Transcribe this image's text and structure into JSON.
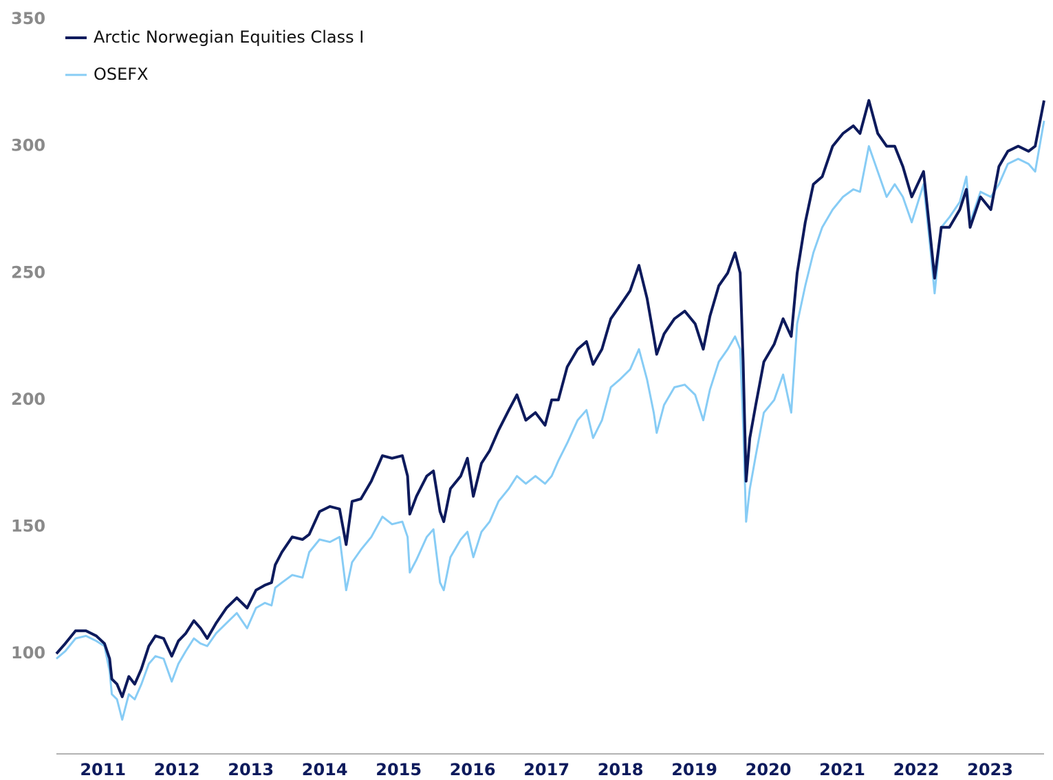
{
  "chart_data": {
    "type": "line",
    "x": [
      2010.87,
      2010.99,
      2011.13,
      2011.27,
      2011.41,
      2011.52,
      2011.59,
      2011.62,
      2011.69,
      2011.76,
      2011.85,
      2011.93,
      2012.02,
      2012.12,
      2012.21,
      2012.32,
      2012.43,
      2012.52,
      2012.62,
      2012.73,
      2012.82,
      2012.91,
      2013.03,
      2013.17,
      2013.31,
      2013.45,
      2013.57,
      2013.69,
      2013.78,
      2013.83,
      2013.92,
      2014.06,
      2014.2,
      2014.29,
      2014.43,
      2014.57,
      2014.7,
      2014.79,
      2014.87,
      2014.99,
      2015.13,
      2015.28,
      2015.41,
      2015.55,
      2015.62,
      2015.65,
      2015.74,
      2015.88,
      2015.97,
      2016.06,
      2016.11,
      2016.2,
      2016.34,
      2016.43,
      2016.51,
      2016.62,
      2016.73,
      2016.85,
      2016.99,
      2017.1,
      2017.22,
      2017.35,
      2017.48,
      2017.57,
      2017.66,
      2017.78,
      2017.92,
      2018.04,
      2018.13,
      2018.25,
      2018.37,
      2018.49,
      2018.63,
      2018.75,
      2018.86,
      2018.95,
      2018.99,
      2019.09,
      2019.23,
      2019.37,
      2019.51,
      2019.62,
      2019.71,
      2019.83,
      2019.95,
      2020.05,
      2020.12,
      2020.16,
      2020.2,
      2020.25,
      2020.33,
      2020.44,
      2020.58,
      2020.7,
      2020.81,
      2020.89,
      2021.0,
      2021.11,
      2021.23,
      2021.37,
      2021.51,
      2021.65,
      2021.74,
      2021.86,
      2021.98,
      2022.1,
      2022.21,
      2022.32,
      2022.44,
      2022.6,
      2022.69,
      2022.75,
      2022.84,
      2022.95,
      2023.09,
      2023.18,
      2023.23,
      2023.37,
      2023.51,
      2023.62,
      2023.74,
      2023.88,
      2024.02,
      2024.11,
      2024.23
    ],
    "series": [
      {
        "name": "Arctic Norwegian Equities Class I",
        "color": "#0d1a5c",
        "width": 4,
        "values": [
          100,
          104,
          109,
          109,
          107,
          104,
          98,
          90,
          88,
          83,
          91,
          88,
          94,
          103,
          107,
          106,
          99,
          105,
          108,
          113,
          110,
          106,
          112,
          118,
          122,
          118,
          125,
          127,
          128,
          135,
          140,
          146,
          145,
          147,
          156,
          158,
          157,
          143,
          160,
          161,
          168,
          178,
          177,
          178,
          170,
          155,
          162,
          170,
          172,
          156,
          152,
          165,
          170,
          177,
          162,
          175,
          180,
          188,
          196,
          202,
          192,
          195,
          190,
          200,
          200,
          213,
          220,
          223,
          214,
          220,
          232,
          237,
          243,
          253,
          240,
          225,
          218,
          226,
          232,
          235,
          230,
          220,
          233,
          245,
          250,
          258,
          250,
          215,
          168,
          185,
          198,
          215,
          222,
          232,
          225,
          250,
          270,
          285,
          288,
          300,
          305,
          308,
          305,
          318,
          305,
          300,
          300,
          292,
          280,
          290,
          265,
          248,
          268,
          268,
          275,
          283,
          268,
          280,
          275,
          292,
          298,
          300,
          298,
          300,
          318
        ]
      },
      {
        "name": "OSEFX",
        "color": "#87ccf5",
        "width": 3,
        "values": [
          98,
          101,
          106,
          107,
          105,
          103,
          93,
          84,
          82,
          74,
          84,
          82,
          88,
          96,
          99,
          98,
          89,
          96,
          101,
          106,
          104,
          103,
          108,
          112,
          116,
          110,
          118,
          120,
          119,
          126,
          128,
          131,
          130,
          140,
          145,
          144,
          146,
          125,
          136,
          141,
          146,
          154,
          151,
          152,
          146,
          132,
          137,
          146,
          149,
          128,
          125,
          138,
          145,
          148,
          138,
          148,
          152,
          160,
          165,
          170,
          167,
          170,
          167,
          170,
          176,
          183,
          192,
          196,
          185,
          192,
          205,
          208,
          212,
          220,
          208,
          195,
          187,
          198,
          205,
          206,
          202,
          192,
          204,
          215,
          220,
          225,
          220,
          190,
          152,
          165,
          178,
          195,
          200,
          210,
          195,
          230,
          245,
          258,
          268,
          275,
          280,
          283,
          282,
          300,
          290,
          280,
          285,
          280,
          270,
          285,
          260,
          242,
          268,
          272,
          278,
          288,
          270,
          282,
          280,
          285,
          293,
          295,
          293,
          290,
          310
        ]
      }
    ],
    "xlim": [
      2010.87,
      2024.23
    ],
    "xticks": [
      2011,
      2012,
      2013,
      2014,
      2015,
      2016,
      2017,
      2018,
      2019,
      2020,
      2021,
      2022,
      2023
    ],
    "ylim": [
      60.5,
      357.6
    ],
    "yticks": [
      100,
      150,
      200,
      250,
      300,
      350
    ],
    "grid": false,
    "legend": "top-left"
  }
}
